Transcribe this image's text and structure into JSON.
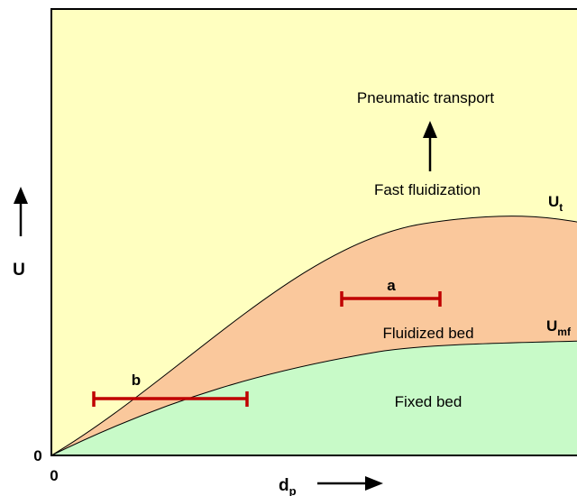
{
  "diagram": {
    "regions": {
      "pneumatic_transport": "Pneumatic transport",
      "fast_fluidization": "Fast fluidization",
      "fluidized_bed": "Fluidized bed",
      "fixed_bed": "Fixed bed"
    },
    "curves": {
      "ut": {
        "main": "U",
        "sub": "t"
      },
      "umf": {
        "main": "U",
        "sub": "mf"
      }
    },
    "markers": {
      "a": "a",
      "b": "b"
    },
    "axes": {
      "y_label": "U",
      "x_label_main": "d",
      "x_label_sub": "p",
      "origin_x": "0",
      "origin_y": "0"
    },
    "colors": {
      "background_region": "#ffffc0",
      "fluidized_region": "#fac89c",
      "fixed_region": "#c8fac8",
      "range_bar": "#c00000"
    }
  }
}
